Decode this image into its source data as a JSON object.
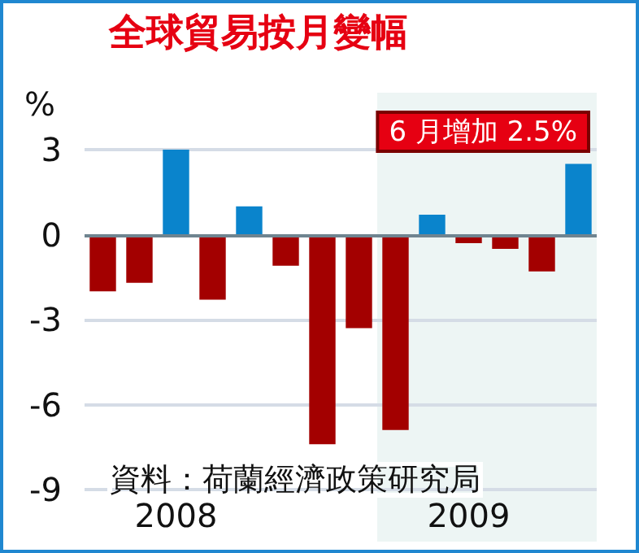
{
  "chart_data": {
    "type": "bar",
    "title": "全球貿易按月變幅",
    "ylabel": "%",
    "categories": [
      null,
      null,
      "2008",
      null,
      null,
      null,
      null,
      null,
      null,
      null,
      "2009",
      null,
      null,
      null
    ],
    "values": [
      -2.0,
      -1.7,
      3.0,
      -2.3,
      1.0,
      -1.1,
      -7.4,
      -3.3,
      -6.9,
      0.7,
      -0.3,
      -0.5,
      -1.3,
      2.5
    ],
    "colors": [
      "#a30000",
      "#a30000",
      "#0a84cc",
      "#a30000",
      "#0a84cc",
      "#a30000",
      "#a30000",
      "#a30000",
      "#a30000",
      "#0a84cc",
      "#a30000",
      "#a30000",
      "#a30000",
      "#0a84cc"
    ],
    "ylim": [
      -9,
      3
    ],
    "yticks": [
      -9,
      -6,
      -3,
      0,
      3
    ],
    "grid": "y",
    "annotations": [
      "6 月增加 2.5%",
      "資料：荷蘭經濟政策研究局"
    ]
  }
}
